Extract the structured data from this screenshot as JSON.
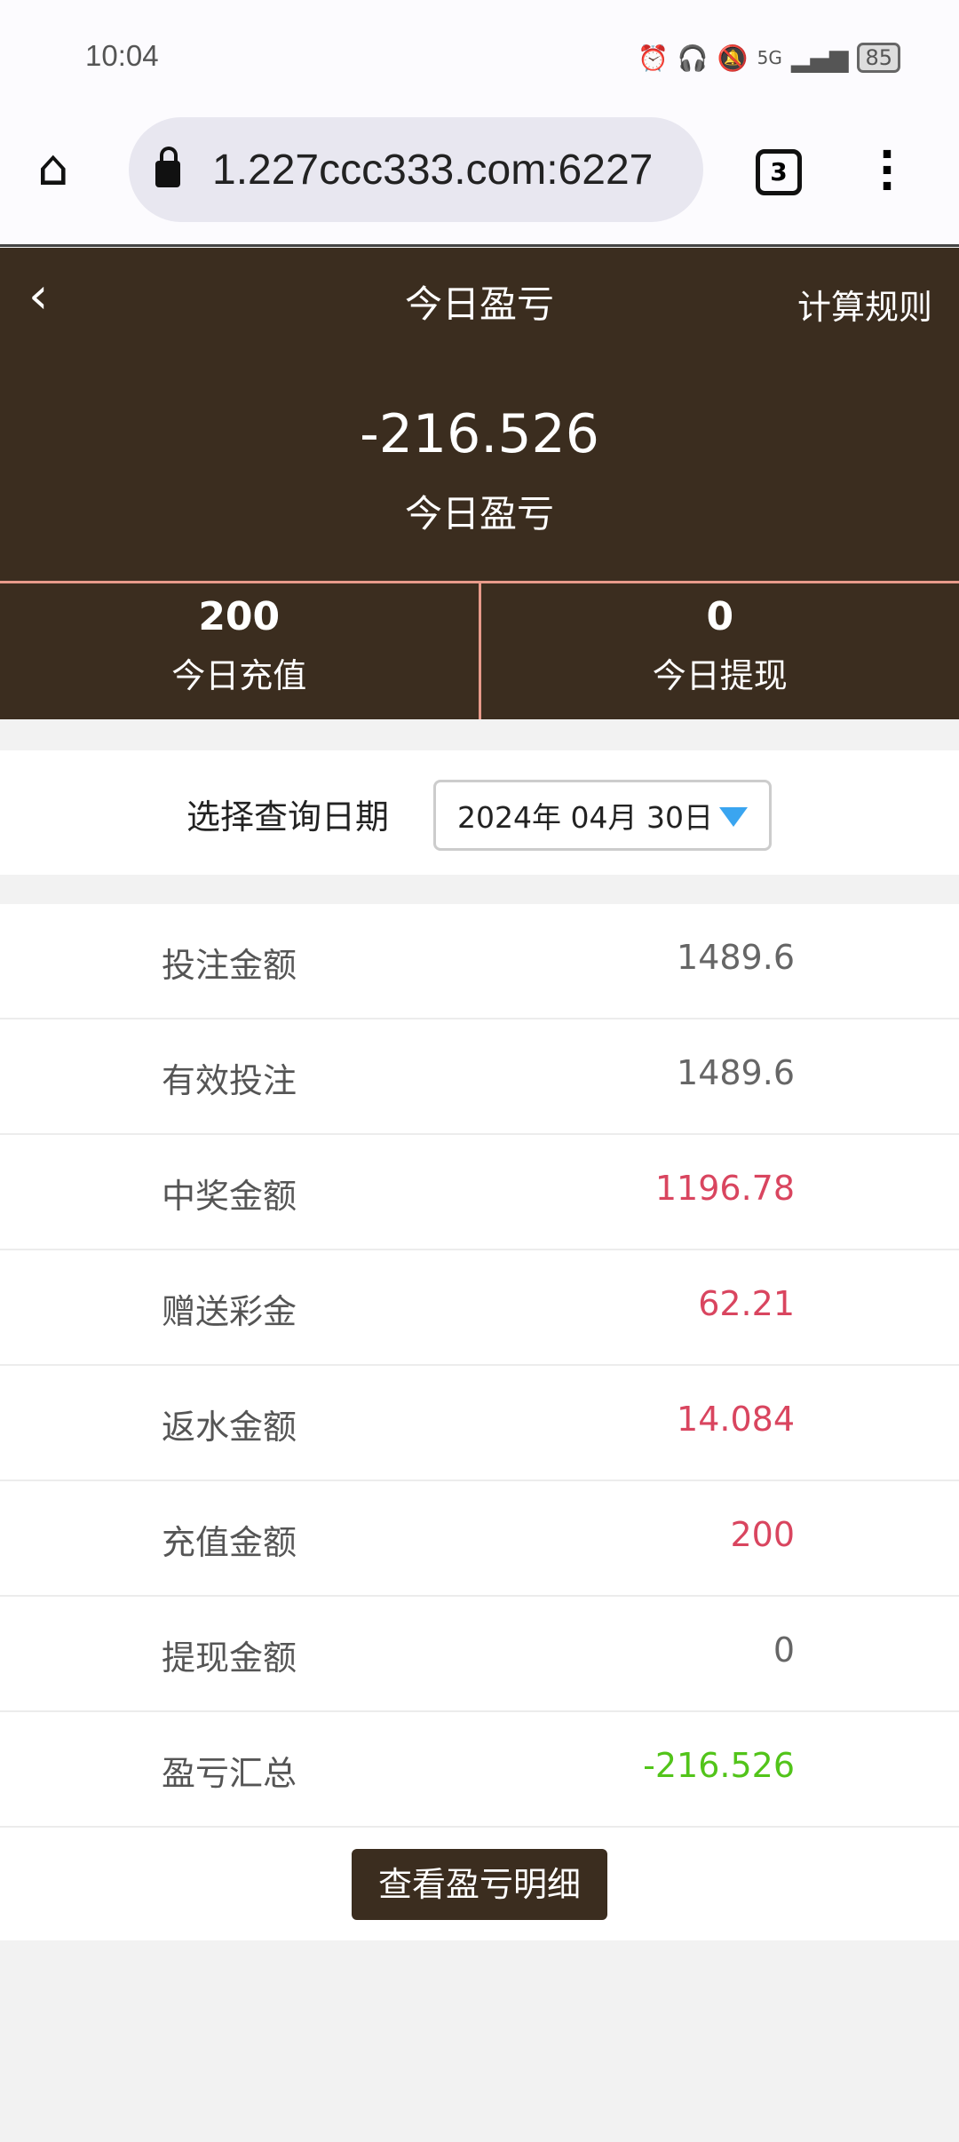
{
  "status_bar": {
    "time": "10:04",
    "battery": "85",
    "network": "5G"
  },
  "browser": {
    "url": "1.227ccc333.com:6227",
    "tab_count": "3"
  },
  "header": {
    "title": "今日盈亏",
    "rules_link": "计算规则",
    "total_value": "-216.526",
    "total_label": "今日盈亏",
    "stats": [
      {
        "value": "200",
        "label": "今日充值"
      },
      {
        "value": "0",
        "label": "今日提现"
      }
    ]
  },
  "date_filter": {
    "label": "选择查询日期",
    "selected": "2024年 04月 30日"
  },
  "rows": [
    {
      "label": "投注金额",
      "value": "1489.6",
      "color": "#666666"
    },
    {
      "label": "有效投注",
      "value": "1489.6",
      "color": "#666666"
    },
    {
      "label": "中奖金额",
      "value": "1196.78",
      "color": "#d9455f"
    },
    {
      "label": "赠送彩金",
      "value": "62.21",
      "color": "#d9455f"
    },
    {
      "label": "返水金额",
      "value": "14.084",
      "color": "#d9455f"
    },
    {
      "label": "充值金额",
      "value": "200",
      "color": "#d9455f"
    },
    {
      "label": "提现金额",
      "value": "0",
      "color": "#666666"
    },
    {
      "label": "盈亏汇总",
      "value": "-216.526",
      "color": "#52c41a"
    }
  ],
  "detail_button": "查看盈亏明细",
  "colors": {
    "brand": "#3b2d1f",
    "divider": "#e89a8a",
    "dropdown_arrow": "#3aa5f0"
  }
}
